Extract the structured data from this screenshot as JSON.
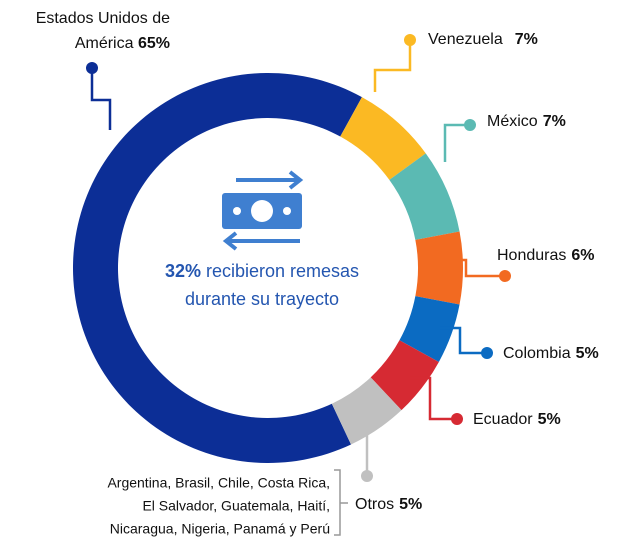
{
  "chart_data": {
    "type": "donut",
    "categories": [
      "Estados Unidos de América",
      "Venezuela",
      "México",
      "Honduras",
      "Colombia",
      "Ecuador",
      "Otros"
    ],
    "values": [
      65,
      7,
      7,
      6,
      5,
      5,
      5
    ],
    "value_labels": [
      "65%",
      "7%",
      "7%",
      "6%",
      "5%",
      "5%",
      "5%"
    ],
    "colors": [
      "#0c2e96",
      "#fbb923",
      "#5bbab3",
      "#f26a21",
      "#0b6bc2",
      "#d62a33",
      "#c0c0c0"
    ],
    "center_value_label": "32%",
    "center_lines": [
      "recibieron remesas",
      "durante su trayecto"
    ],
    "otros_note": [
      "Argentina, Brasil, Chile, Costa Rica,",
      "El Salvador, Guatemala, Haití,",
      "Nicaragua, Nigeria, Panamá y Perú"
    ]
  }
}
